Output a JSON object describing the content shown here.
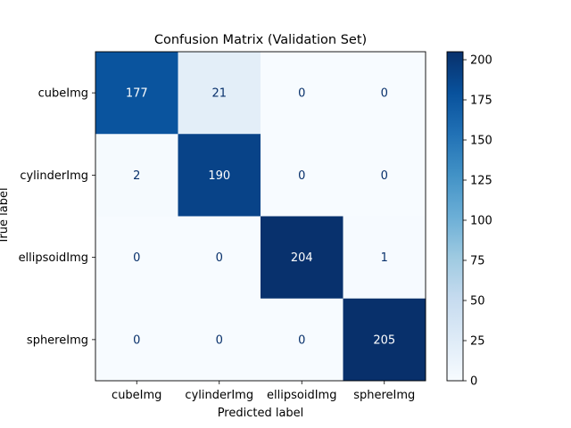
{
  "chart_data": {
    "type": "heatmap",
    "title": "Confusion Matrix (Validation Set)",
    "xlabel": "Predicted label",
    "ylabel": "True label",
    "x_categories": [
      "cubeImg",
      "cylinderImg",
      "ellipsoidImg",
      "sphereImg"
    ],
    "y_categories": [
      "cubeImg",
      "cylinderImg",
      "ellipsoidImg",
      "sphereImg"
    ],
    "values": [
      [
        177,
        21,
        0,
        0
      ],
      [
        2,
        190,
        0,
        0
      ],
      [
        0,
        0,
        204,
        1
      ],
      [
        0,
        0,
        0,
        205
      ]
    ],
    "colormap": "Blues",
    "color_range": [
      0,
      205
    ],
    "colorbar_ticks": [
      0,
      25,
      50,
      75,
      100,
      125,
      150,
      175,
      200
    ],
    "grid": false
  }
}
